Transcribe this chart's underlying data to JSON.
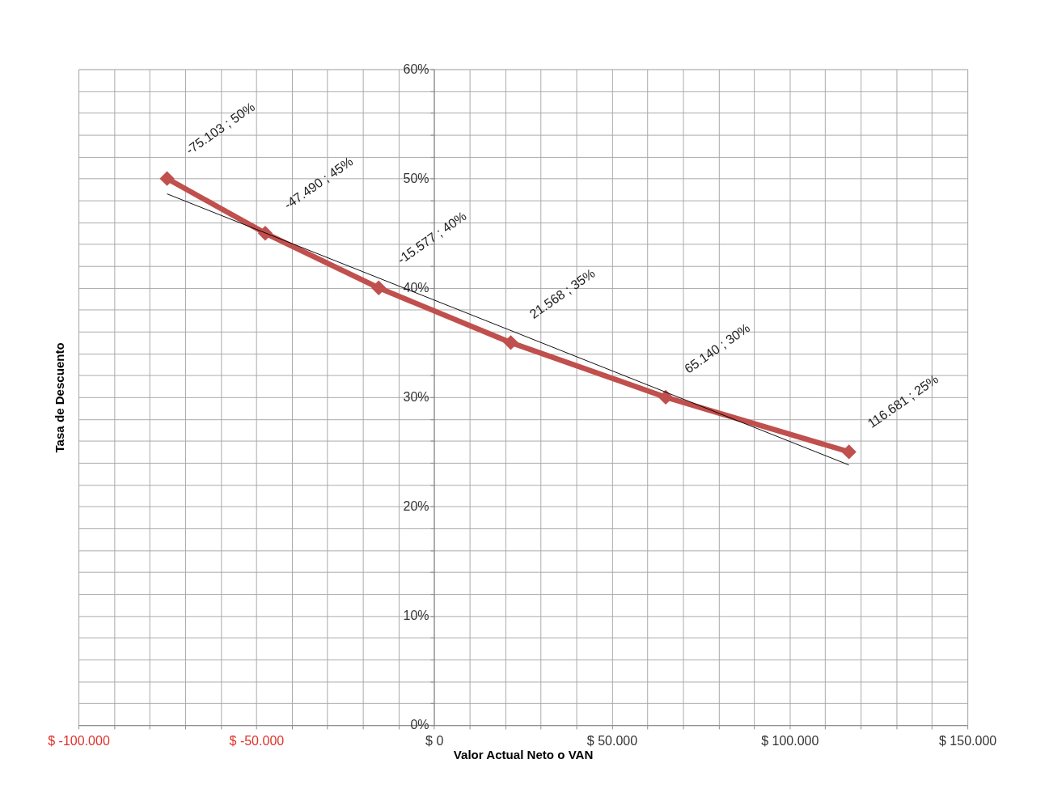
{
  "chart_data": {
    "type": "line",
    "xlabel": "Valor Actual Neto o VAN",
    "ylabel": "Tasa de  Descuento",
    "series": [
      {
        "color": "#c0504d",
        "x": [
          -75103,
          -47490,
          -15577,
          21568,
          65140,
          116681
        ],
        "values": [
          50,
          45,
          40,
          35,
          30,
          25
        ],
        "value_labels": [
          "-75.103 ; 50%",
          "-47.490 ; 45%",
          "-15.577 ; 40%",
          "21.568 ; 35%",
          "65.140 ; 30%",
          "116.681 ; 25%"
        ]
      },
      {
        "type": "line",
        "color": "#000000",
        "x": [
          -75103,
          116681
        ],
        "values": [
          48.6,
          23.8
        ],
        "marker": "none"
      }
    ],
    "xlim": [
      -100000,
      150000
    ],
    "xticks": [
      {
        "value": -100000,
        "label": "$ -100.000"
      },
      {
        "value": -90000,
        "label": null
      },
      {
        "value": -80000,
        "label": null
      },
      {
        "value": -70000,
        "label": null
      },
      {
        "value": -60000,
        "label": null
      },
      {
        "value": -50000,
        "label": "$ -50.000"
      },
      {
        "value": -40000,
        "label": null
      },
      {
        "value": -30000,
        "label": null
      },
      {
        "value": -20000,
        "label": null
      },
      {
        "value": -10000,
        "label": null
      },
      {
        "value": 0,
        "label": "$ 0"
      },
      {
        "value": 10000,
        "label": null
      },
      {
        "value": 20000,
        "label": null
      },
      {
        "value": 30000,
        "label": null
      },
      {
        "value": 40000,
        "label": null
      },
      {
        "value": 50000,
        "label": "$ 50.000"
      },
      {
        "value": 60000,
        "label": null
      },
      {
        "value": 70000,
        "label": null
      },
      {
        "value": 80000,
        "label": null
      },
      {
        "value": 90000,
        "label": null
      },
      {
        "value": 100000,
        "label": "$ 100.000"
      },
      {
        "value": 110000,
        "label": null
      },
      {
        "value": 120000,
        "label": null
      },
      {
        "value": 130000,
        "label": null
      },
      {
        "value": 140000,
        "label": null
      },
      {
        "value": 150000,
        "label": "$ 150.000"
      }
    ],
    "ylim": [
      0,
      60
    ],
    "yticks": [
      {
        "value": 0,
        "label": "0%"
      },
      {
        "value": 2,
        "label": null
      },
      {
        "value": 4,
        "label": null
      },
      {
        "value": 6,
        "label": null
      },
      {
        "value": 8,
        "label": null
      },
      {
        "value": 10,
        "label": "10%"
      },
      {
        "value": 12,
        "label": null
      },
      {
        "value": 14,
        "label": null
      },
      {
        "value": 16,
        "label": null
      },
      {
        "value": 18,
        "label": null
      },
      {
        "value": 20,
        "label": "20%"
      },
      {
        "value": 22,
        "label": null
      },
      {
        "value": 24,
        "label": null
      },
      {
        "value": 26,
        "label": null
      },
      {
        "value": 28,
        "label": null
      },
      {
        "value": 30,
        "label": "30%"
      },
      {
        "value": 32,
        "label": null
      },
      {
        "value": 34,
        "label": null
      },
      {
        "value": 36,
        "label": null
      },
      {
        "value": 38,
        "label": null
      },
      {
        "value": 40,
        "label": "40%"
      },
      {
        "value": 42,
        "label": null
      },
      {
        "value": 44,
        "label": null
      },
      {
        "value": 46,
        "label": null
      },
      {
        "value": 48,
        "label": null
      },
      {
        "value": 50,
        "label": "50%"
      },
      {
        "value": 52,
        "label": null
      },
      {
        "value": 54,
        "label": null
      },
      {
        "value": 56,
        "label": null
      },
      {
        "value": 58,
        "label": null
      },
      {
        "value": 60,
        "label": "60%"
      }
    ],
    "grid": true,
    "marker": "diamond",
    "line_style": "solid"
  }
}
